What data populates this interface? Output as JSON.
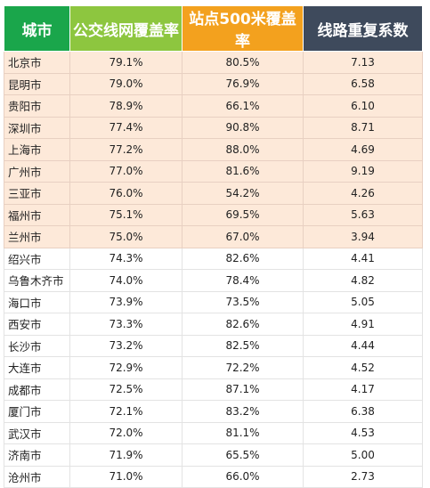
{
  "colors": {
    "header_city": "#1aa64b",
    "header_bus": "#8dc63f",
    "header_station": "#f3a11e",
    "header_dup": "#3e4a5c",
    "highlight_row": "#fde9d9"
  },
  "header": {
    "city": "城市",
    "bus_coverage": "公交线网覆盖率",
    "station_coverage": "站点500米覆盖率",
    "route_duplication": "线路重复系数"
  },
  "highlighted_rows": 9,
  "rows": [
    {
      "city": "北京市",
      "bus": "79.1%",
      "station": "80.5%",
      "dup": "7.13"
    },
    {
      "city": "昆明市",
      "bus": "79.0%",
      "station": "76.9%",
      "dup": "6.58"
    },
    {
      "city": "贵阳市",
      "bus": "78.9%",
      "station": "66.1%",
      "dup": "6.10"
    },
    {
      "city": "深圳市",
      "bus": "77.4%",
      "station": "90.8%",
      "dup": "8.71"
    },
    {
      "city": "上海市",
      "bus": "77.2%",
      "station": "88.0%",
      "dup": "4.69"
    },
    {
      "city": "广州市",
      "bus": "77.0%",
      "station": "81.6%",
      "dup": "9.19"
    },
    {
      "city": "三亚市",
      "bus": "76.0%",
      "station": "54.2%",
      "dup": "4.26"
    },
    {
      "city": "福州市",
      "bus": "75.1%",
      "station": "69.5%",
      "dup": "5.63"
    },
    {
      "city": "兰州市",
      "bus": "75.0%",
      "station": "67.0%",
      "dup": "3.94"
    },
    {
      "city": "绍兴市",
      "bus": "74.3%",
      "station": "82.6%",
      "dup": "4.41"
    },
    {
      "city": "乌鲁木齐市",
      "bus": "74.0%",
      "station": "78.4%",
      "dup": "4.82"
    },
    {
      "city": "海口市",
      "bus": "73.9%",
      "station": "73.5%",
      "dup": "5.05"
    },
    {
      "city": "西安市",
      "bus": "73.3%",
      "station": "82.6%",
      "dup": "4.91"
    },
    {
      "city": "长沙市",
      "bus": "73.2%",
      "station": "82.5%",
      "dup": "4.44"
    },
    {
      "city": "大连市",
      "bus": "72.9%",
      "station": "72.2%",
      "dup": "4.52"
    },
    {
      "city": "成都市",
      "bus": "72.5%",
      "station": "87.1%",
      "dup": "4.17"
    },
    {
      "city": "厦门市",
      "bus": "72.1%",
      "station": "83.2%",
      "dup": "6.38"
    },
    {
      "city": "武汉市",
      "bus": "72.0%",
      "station": "81.1%",
      "dup": "4.53"
    },
    {
      "city": "济南市",
      "bus": "71.9%",
      "station": "65.5%",
      "dup": "5.00"
    },
    {
      "city": "沧州市",
      "bus": "71.0%",
      "station": "66.0%",
      "dup": "2.73"
    }
  ]
}
